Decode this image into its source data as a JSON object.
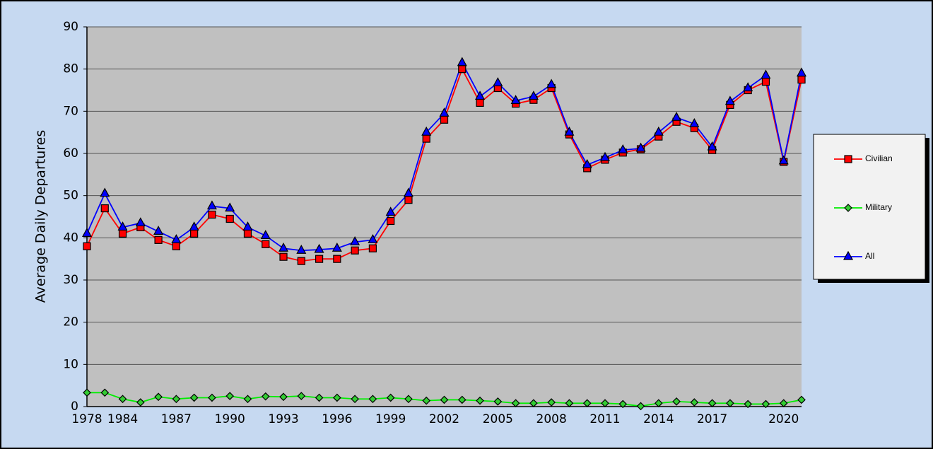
{
  "chart_data": {
    "type": "line",
    "y_label": "Average Daily Departures",
    "categories": [
      "1978",
      null,
      "1984",
      null,
      null,
      "1987",
      null,
      null,
      "1990",
      null,
      null,
      "1993",
      null,
      null,
      "1996",
      null,
      null,
      "1999",
      null,
      null,
      "2002",
      null,
      null,
      "2005",
      null,
      null,
      "2008",
      null,
      null,
      "2011",
      null,
      null,
      "2014",
      null,
      null,
      "2017",
      null,
      null,
      null,
      "2020",
      null
    ],
    "series": [
      {
        "name": "Civilian",
        "color": "#ff0000",
        "marker": "square",
        "values": [
          38,
          47,
          41,
          42.5,
          39.5,
          38,
          41,
          45.5,
          44.5,
          41,
          38.5,
          35.5,
          34.5,
          35,
          35,
          37,
          37.5,
          44,
          49,
          63.5,
          68,
          80,
          72,
          75.5,
          71.8,
          72.7,
          75.5,
          64.5,
          56.5,
          58.5,
          60.2,
          61,
          64,
          67.5,
          66,
          60.8,
          71.5,
          75,
          77,
          58,
          77.5
        ]
      },
      {
        "name": "Military",
        "color": "#00ee00",
        "marker": "diamond",
        "values": [
          3.3,
          3.3,
          1.8,
          1,
          2.3,
          1.8,
          2.1,
          2.1,
          2.5,
          1.8,
          2.4,
          2.3,
          2.5,
          2.1,
          2.1,
          1.8,
          1.8,
          2.1,
          1.8,
          1.4,
          1.6,
          1.6,
          1.4,
          1.2,
          0.8,
          0.8,
          1,
          0.8,
          0.8,
          0.8,
          0.6,
          0.1,
          0.8,
          1.2,
          1,
          0.8,
          0.8,
          0.6,
          0.6,
          0.8,
          1.6
        ]
      },
      {
        "name": "All",
        "color": "#0000ff",
        "marker": "triangle",
        "values": [
          41,
          50.5,
          42.5,
          43.5,
          41.5,
          39.5,
          42.5,
          47.5,
          47,
          42.5,
          40.5,
          37.5,
          37,
          37.2,
          37.5,
          39,
          39.5,
          46,
          50.5,
          65,
          69.5,
          81.5,
          73.5,
          76.7,
          72.5,
          73.5,
          76.3,
          65,
          57.3,
          59,
          60.8,
          61.2,
          65,
          68.5,
          67,
          61.5,
          72.3,
          75.5,
          78.5,
          58.2,
          79
        ]
      }
    ],
    "ylim": [
      0,
      90
    ],
    "yticks": [
      0,
      10,
      20,
      30,
      40,
      50,
      60,
      70,
      80,
      90
    ],
    "grid": true
  }
}
